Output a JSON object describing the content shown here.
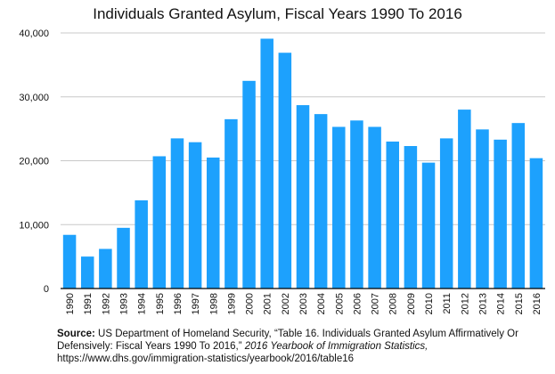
{
  "chart_data": {
    "type": "bar",
    "title": "Individuals Granted Asylum, Fiscal Years 1990 To 2016",
    "xlabel": "",
    "ylabel": "",
    "ylim": [
      0,
      40000
    ],
    "yticks": [
      "0",
      "10,000",
      "20,000",
      "30,000",
      "40,000"
    ],
    "ytick_values": [
      0,
      10000,
      20000,
      30000,
      40000
    ],
    "grid": true,
    "bar_color": "#1da1fd",
    "categories": [
      "1990",
      "1991",
      "1992",
      "1993",
      "1994",
      "1995",
      "1996",
      "1997",
      "1998",
      "1999",
      "2000",
      "2001",
      "2002",
      "2003",
      "2004",
      "2005",
      "2006",
      "2007",
      "2008",
      "2009",
      "2010",
      "2011",
      "2012",
      "2013",
      "2014",
      "2015",
      "2016"
    ],
    "values": [
      8400,
      5000,
      6200,
      9500,
      13800,
      20700,
      23500,
      22900,
      20500,
      26500,
      32500,
      39100,
      36900,
      28700,
      27300,
      25300,
      26300,
      25300,
      23000,
      22300,
      19700,
      23500,
      28000,
      24900,
      23300,
      25900,
      20400
    ]
  },
  "source": {
    "label": "Source:",
    "text1": " US Department of Homeland Security, “Table 16. Individuals Granted Asylum Affirmatively Or Defensively: Fiscal Years 1990 To 2016,” ",
    "italic": "2016 Yearbook of Immigration Statistics,",
    "url": "https://www.dhs.gov/immigration-statistics/yearbook/2016/table16"
  }
}
